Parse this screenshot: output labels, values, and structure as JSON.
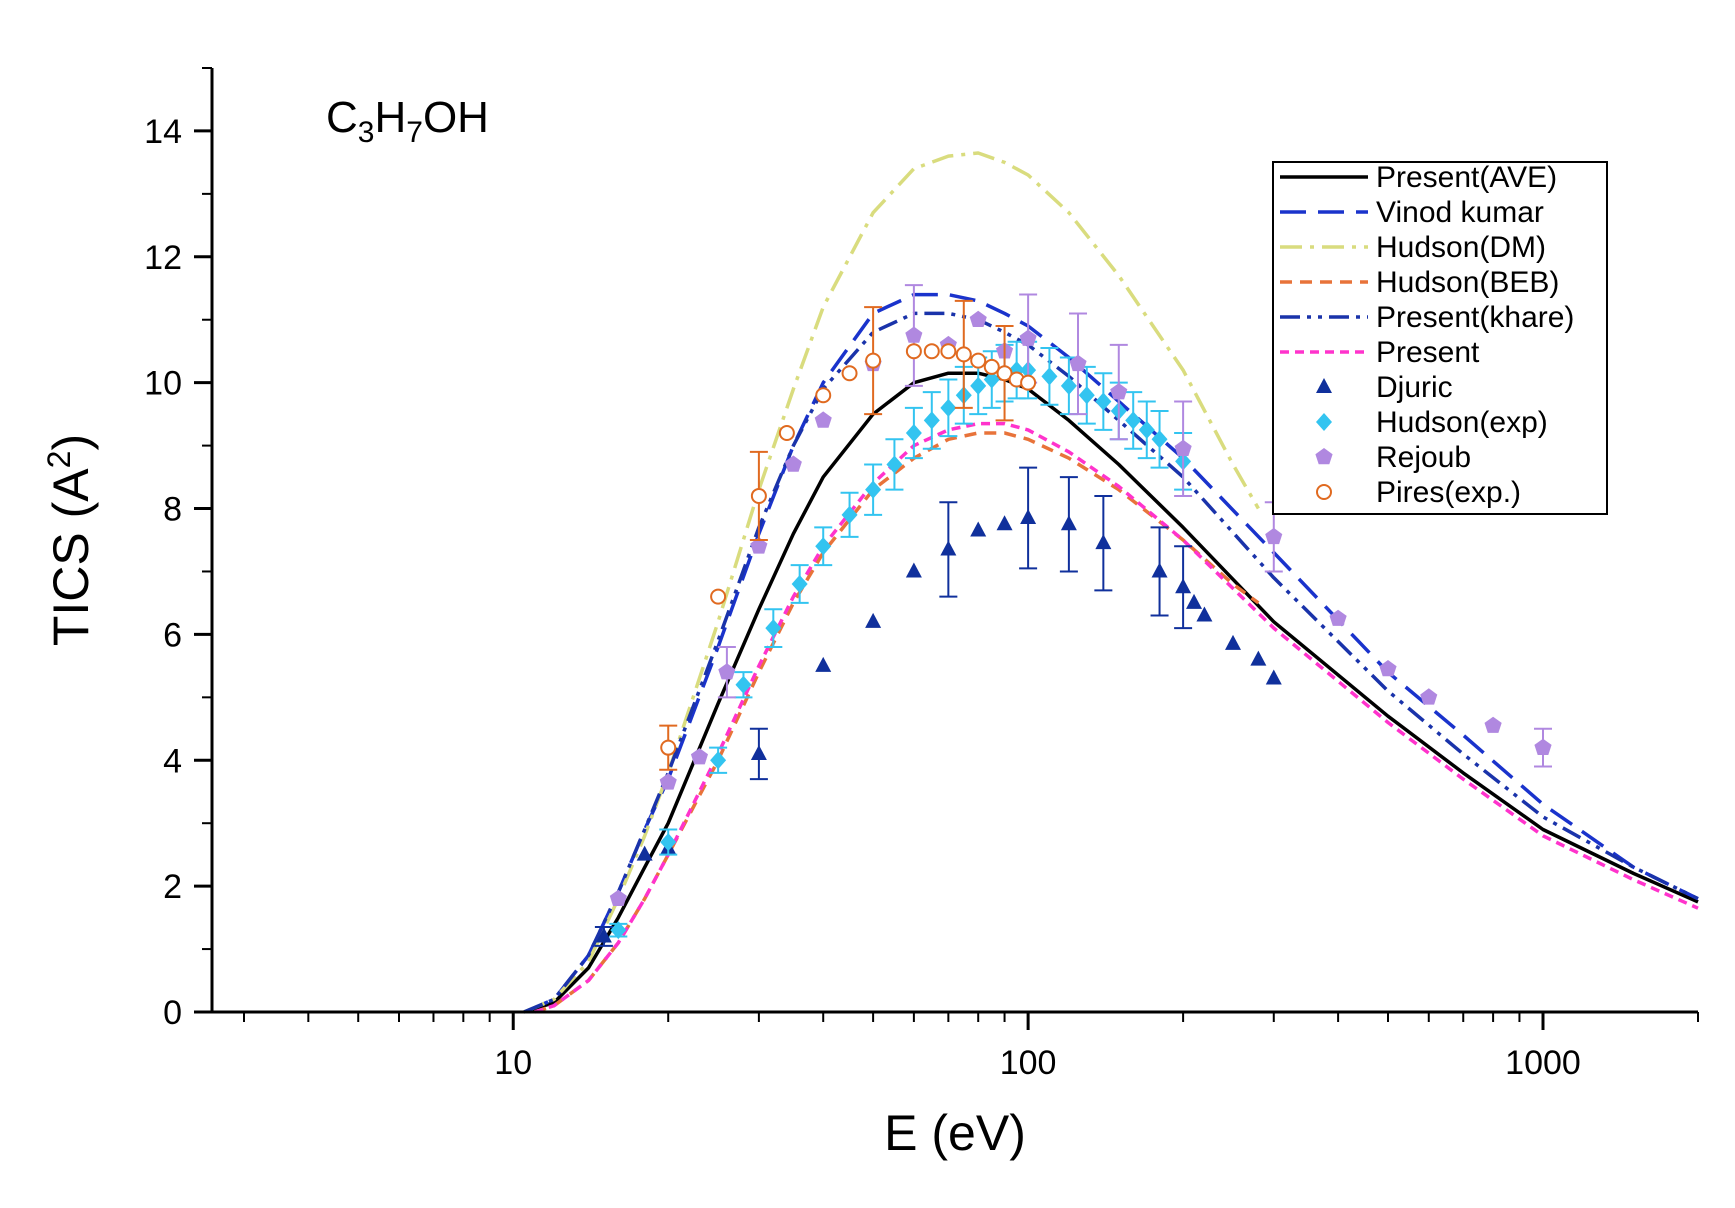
{
  "chart_data": {
    "type": "line",
    "title": "",
    "annotation": {
      "base": "C",
      "sub1": "3",
      "mid": "H",
      "sub2": "7",
      "tail": "OH"
    },
    "xlabel": "E (eV)",
    "ylabel": {
      "main": "TICS (A",
      "sup": "2",
      "close": ")"
    },
    "xscale": "log",
    "xlim": [
      2.6,
      2000
    ],
    "ylim": [
      0,
      15
    ],
    "xticks": [
      {
        "value": 10,
        "label": "10"
      },
      {
        "value": 100,
        "label": "100"
      },
      {
        "value": 1000,
        "label": "1000"
      }
    ],
    "yticks": [
      {
        "value": 0,
        "label": "0"
      },
      {
        "value": 2,
        "label": "2"
      },
      {
        "value": 4,
        "label": "4"
      },
      {
        "value": 6,
        "label": "6"
      },
      {
        "value": 8,
        "label": "8"
      },
      {
        "value": 10,
        "label": "10"
      },
      {
        "value": 12,
        "label": "12"
      },
      {
        "value": 14,
        "label": "14"
      }
    ],
    "legend_position": "top-right",
    "series": [
      {
        "name": "Present(AVE)",
        "kind": "line",
        "color": "#000000",
        "dash": "solid",
        "x": [
          10.5,
          12,
          14,
          16,
          18,
          20,
          25,
          30,
          35,
          40,
          50,
          60,
          70,
          80,
          90,
          100,
          120,
          150,
          200,
          300,
          500,
          700,
          1000,
          1500,
          2000
        ],
        "y": [
          0,
          0.15,
          0.7,
          1.5,
          2.3,
          3.0,
          4.9,
          6.4,
          7.6,
          8.5,
          9.5,
          10.0,
          10.15,
          10.15,
          10.05,
          9.9,
          9.4,
          8.7,
          7.7,
          6.2,
          4.7,
          3.8,
          2.9,
          2.2,
          1.75
        ]
      },
      {
        "name": "Vinod kumar",
        "kind": "line",
        "color": "#1a33cc",
        "dash": "long-dash",
        "x": [
          10.5,
          12,
          14,
          16,
          18,
          20,
          25,
          30,
          35,
          40,
          50,
          60,
          70,
          80,
          90,
          100,
          120,
          150,
          200,
          300,
          500,
          700,
          1000,
          1500,
          2000
        ],
        "y": [
          0,
          0.2,
          0.9,
          1.9,
          2.9,
          3.7,
          5.8,
          7.6,
          9.0,
          10.0,
          11.1,
          11.4,
          11.4,
          11.3,
          11.1,
          10.9,
          10.4,
          9.7,
          8.8,
          7.3,
          5.4,
          4.4,
          3.3,
          2.3,
          1.8
        ]
      },
      {
        "name": "Hudson(DM)",
        "kind": "line",
        "color": "#d9dc7e",
        "dash": "dash-dot",
        "x": [
          10.5,
          12,
          14,
          16,
          18,
          20,
          25,
          30,
          35,
          40,
          50,
          60,
          70,
          80,
          90,
          100,
          120,
          150,
          200,
          250,
          280
        ],
        "y": [
          0,
          0.2,
          0.8,
          1.8,
          2.8,
          3.8,
          6.2,
          8.3,
          9.9,
          11.2,
          12.7,
          13.4,
          13.6,
          13.65,
          13.5,
          13.3,
          12.7,
          11.7,
          10.2,
          8.7,
          8.0
        ]
      },
      {
        "name": "Hudson(BEB)",
        "kind": "line",
        "color": "#e8733a",
        "dash": "dash",
        "x": [
          11,
          12,
          14,
          16,
          18,
          20,
          25,
          30,
          35,
          40,
          50,
          60,
          70,
          80,
          90,
          100,
          120,
          150,
          200,
          250,
          280
        ],
        "y": [
          0,
          0.1,
          0.5,
          1.1,
          1.8,
          2.5,
          4.0,
          5.4,
          6.5,
          7.3,
          8.3,
          8.8,
          9.1,
          9.2,
          9.2,
          9.1,
          8.8,
          8.3,
          7.5,
          6.8,
          6.5
        ]
      },
      {
        "name": "Present(khare)",
        "kind": "line",
        "color": "#1a33aa",
        "dash": "dash-dot-dot",
        "x": [
          10.5,
          12,
          14,
          16,
          18,
          20,
          25,
          30,
          35,
          40,
          50,
          60,
          70,
          80,
          90,
          100,
          120,
          150,
          200,
          300,
          500,
          700,
          1000,
          1500,
          2000
        ],
        "y": [
          0,
          0.2,
          0.9,
          1.9,
          2.9,
          3.8,
          5.9,
          7.7,
          9.0,
          9.9,
          10.8,
          11.1,
          11.1,
          11.0,
          10.8,
          10.6,
          10.1,
          9.4,
          8.5,
          6.9,
          5.1,
          4.1,
          3.1,
          2.3,
          1.8
        ]
      },
      {
        "name": "Present",
        "kind": "line",
        "color": "#ff33cc",
        "dash": "short-dash",
        "x": [
          11,
          12,
          14,
          16,
          18,
          20,
          25,
          30,
          35,
          40,
          50,
          60,
          70,
          80,
          90,
          100,
          120,
          150,
          200,
          300,
          500,
          700,
          1000,
          1500,
          2000
        ],
        "y": [
          0,
          0.1,
          0.5,
          1.1,
          1.8,
          2.5,
          4.1,
          5.5,
          6.6,
          7.4,
          8.4,
          9.0,
          9.25,
          9.35,
          9.35,
          9.25,
          8.9,
          8.35,
          7.5,
          6.1,
          4.6,
          3.7,
          2.8,
          2.1,
          1.65
        ]
      },
      {
        "name": "Djuric",
        "kind": "scatter",
        "marker": "triangle",
        "color": "#10309c",
        "x": [
          15,
          18,
          20,
          30,
          40,
          50,
          60,
          70,
          80,
          90,
          100,
          120,
          140,
          180,
          200,
          210,
          220,
          250,
          280,
          300
        ],
        "y": [
          1.2,
          2.5,
          2.6,
          4.1,
          5.5,
          6.2,
          7.0,
          7.35,
          7.65,
          7.75,
          7.85,
          7.75,
          7.45,
          7.0,
          6.75,
          6.5,
          6.3,
          5.85,
          5.6,
          5.3
        ],
        "yerr": [
          0.15,
          0,
          0,
          0.4,
          0,
          0,
          0,
          0.75,
          0,
          0,
          0.8,
          0.75,
          0.75,
          0.7,
          0.65,
          0,
          0,
          0,
          0,
          0
        ]
      },
      {
        "name": "Hudson(exp)",
        "kind": "scatter",
        "marker": "diamond",
        "color": "#33c4f0",
        "x": [
          16,
          20,
          25,
          28,
          32,
          36,
          40,
          45,
          50,
          55,
          60,
          65,
          70,
          75,
          80,
          85,
          90,
          95,
          100,
          110,
          120,
          130,
          140,
          150,
          160,
          170,
          180,
          200
        ],
        "y": [
          1.3,
          2.7,
          4.0,
          5.2,
          6.1,
          6.8,
          7.4,
          7.9,
          8.3,
          8.7,
          9.2,
          9.4,
          9.6,
          9.8,
          9.95,
          10.05,
          10.15,
          10.2,
          10.2,
          10.1,
          9.95,
          9.8,
          9.7,
          9.55,
          9.4,
          9.25,
          9.1,
          8.75
        ],
        "yerr": [
          0.1,
          0.2,
          0.2,
          0.2,
          0.3,
          0.3,
          0.3,
          0.35,
          0.4,
          0.4,
          0.4,
          0.45,
          0.45,
          0.45,
          0.45,
          0.45,
          0.45,
          0.45,
          0.45,
          0.45,
          0.45,
          0.45,
          0.45,
          0.45,
          0.45,
          0.45,
          0.45,
          0.45
        ]
      },
      {
        "name": "Rejoub",
        "kind": "scatter",
        "marker": "pentagon",
        "color": "#b088e0",
        "x": [
          16,
          20,
          23,
          26,
          30,
          35,
          40,
          50,
          60,
          70,
          80,
          90,
          100,
          125,
          150,
          200,
          300,
          400,
          500,
          600,
          800,
          1000
        ],
        "y": [
          1.8,
          3.65,
          4.05,
          5.4,
          7.4,
          8.7,
          9.4,
          10.3,
          10.75,
          10.6,
          11.0,
          10.5,
          10.7,
          10.3,
          9.85,
          8.95,
          7.55,
          6.25,
          5.45,
          5.0,
          4.55,
          4.2
        ],
        "yerr": [
          0,
          0,
          0,
          0.4,
          0,
          0,
          0,
          0,
          0.8,
          0,
          0,
          0,
          0.7,
          0.8,
          0.75,
          0.75,
          0.55,
          0,
          0,
          0,
          0,
          0.3
        ]
      },
      {
        "name": "Pires(exp.)",
        "kind": "scatter",
        "marker": "circle-open",
        "color": "#e06a20",
        "x": [
          20,
          25,
          30,
          34,
          40,
          45,
          50,
          60,
          65,
          70,
          75,
          80,
          85,
          90,
          95,
          100
        ],
        "y": [
          4.2,
          6.6,
          8.2,
          9.2,
          9.8,
          10.15,
          10.35,
          10.5,
          10.5,
          10.5,
          10.45,
          10.35,
          10.25,
          10.15,
          10.05,
          10.0
        ],
        "yerr": [
          0.35,
          0,
          0.7,
          0,
          0,
          0,
          0.85,
          0,
          0,
          0,
          0.85,
          0,
          0,
          0.75,
          0,
          0
        ]
      }
    ]
  }
}
